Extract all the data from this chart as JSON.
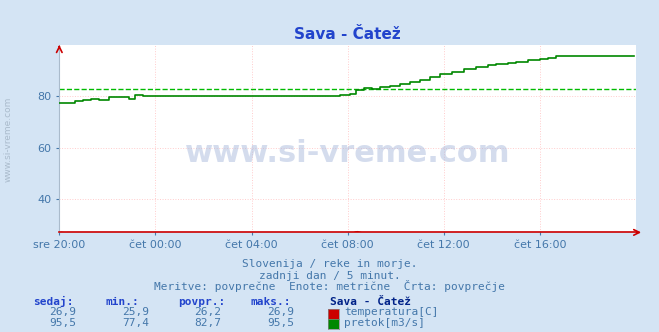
{
  "title": "Sava - Čatež",
  "background_color": "#d4e4f4",
  "plot_bg_color": "#ffffff",
  "grid_color": "#ffbbbb",
  "grid_dotted_color": "#ddbbbb",
  "xlabel_ticks": [
    "sre 20:00",
    "čet 00:00",
    "čet 04:00",
    "čet 08:00",
    "čet 12:00",
    "čet 16:00"
  ],
  "ylabel_ticks": [
    40,
    60,
    80
  ],
  "ylim": [
    27,
    100
  ],
  "xlim": [
    0,
    288
  ],
  "temp_color": "#cc0000",
  "flow_color": "#008800",
  "avg_color": "#00bb00",
  "watermark_text": "www.si-vreme.com",
  "subtitle_lines": [
    "Slovenija / reke in morje.",
    "zadnji dan / 5 minut.",
    "Meritve: povprečne  Enote: metrične  Črta: povprečje"
  ],
  "table_headers": [
    "sedaj:",
    "min.:",
    "povpr.:",
    "maks.:",
    "Sava - Čatež"
  ],
  "table_row1": [
    "26,9",
    "25,9",
    "26,2",
    "26,9"
  ],
  "table_row2": [
    "95,5",
    "77,4",
    "82,7",
    "95,5"
  ],
  "label_temp": "temperatura[C]",
  "label_flow": "pretok[m3/s]",
  "temp_value": 26.9,
  "flow_avg": 82.7,
  "flow_min": 77.4,
  "flow_max": 95.5,
  "n_points": 288,
  "tick_positions": [
    0,
    48,
    96,
    144,
    192,
    240
  ]
}
